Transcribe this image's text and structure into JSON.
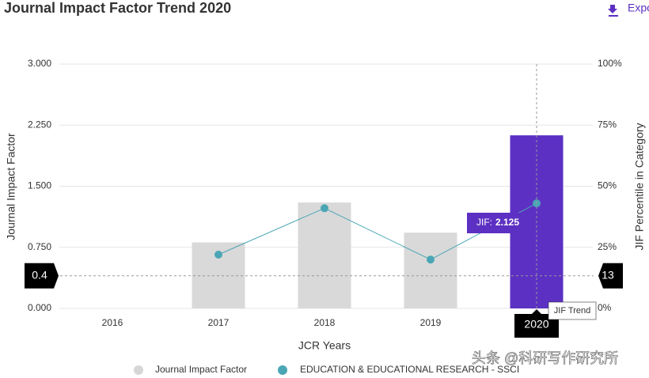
{
  "chart_data": {
    "type": "bar",
    "title": "Journal Impact Factor Trend 2020",
    "export_label": "Expo",
    "categories": [
      "2016",
      "2017",
      "2018",
      "2019",
      "2020"
    ],
    "series": [
      {
        "name": "Journal Impact Factor",
        "type": "bar",
        "color": "#d6d6d6",
        "colors": [
          "#d9d9d9",
          "#d9d9d9",
          "#d9d9d9",
          "#d9d9d9",
          "#5c30c2"
        ],
        "values": [
          null,
          0.81,
          1.3,
          0.93,
          2.125
        ]
      },
      {
        "name": "EDUCATION & EDUCATIONAL RESEARCH - SSCI",
        "type": "line",
        "axis": "y2",
        "color": "#4aa6b5",
        "values": [
          null,
          22,
          41,
          20,
          43
        ]
      }
    ],
    "ylim": [
      0,
      3
    ],
    "yticks": [
      {
        "value": 0,
        "label": "0.000"
      },
      {
        "value": 0.75,
        "label": "0.750"
      },
      {
        "value": 1.5,
        "label": "1.500"
      },
      {
        "value": 2.25,
        "label": "2.250"
      },
      {
        "value": 3,
        "label": "3.000"
      }
    ],
    "y2lim": [
      0,
      100
    ],
    "y2ticks": [
      {
        "value": 0,
        "label": "0%"
      },
      {
        "value": 25,
        "label": "25%"
      },
      {
        "value": 50,
        "label": "50%"
      },
      {
        "value": 75,
        "label": "75%"
      },
      {
        "value": 100,
        "label": "100%"
      }
    ],
    "ylabel": "Journal Impact Factor",
    "y2label": "JIF Percentile in Category",
    "xlabel": "JCR Years",
    "grid": true,
    "crosshair": {
      "y": 0.4,
      "y2": 13
    },
    "tooltip_label": "JIF:",
    "hover_label": "JIF Trend",
    "watermark": "头条 @科研写作研究所"
  }
}
